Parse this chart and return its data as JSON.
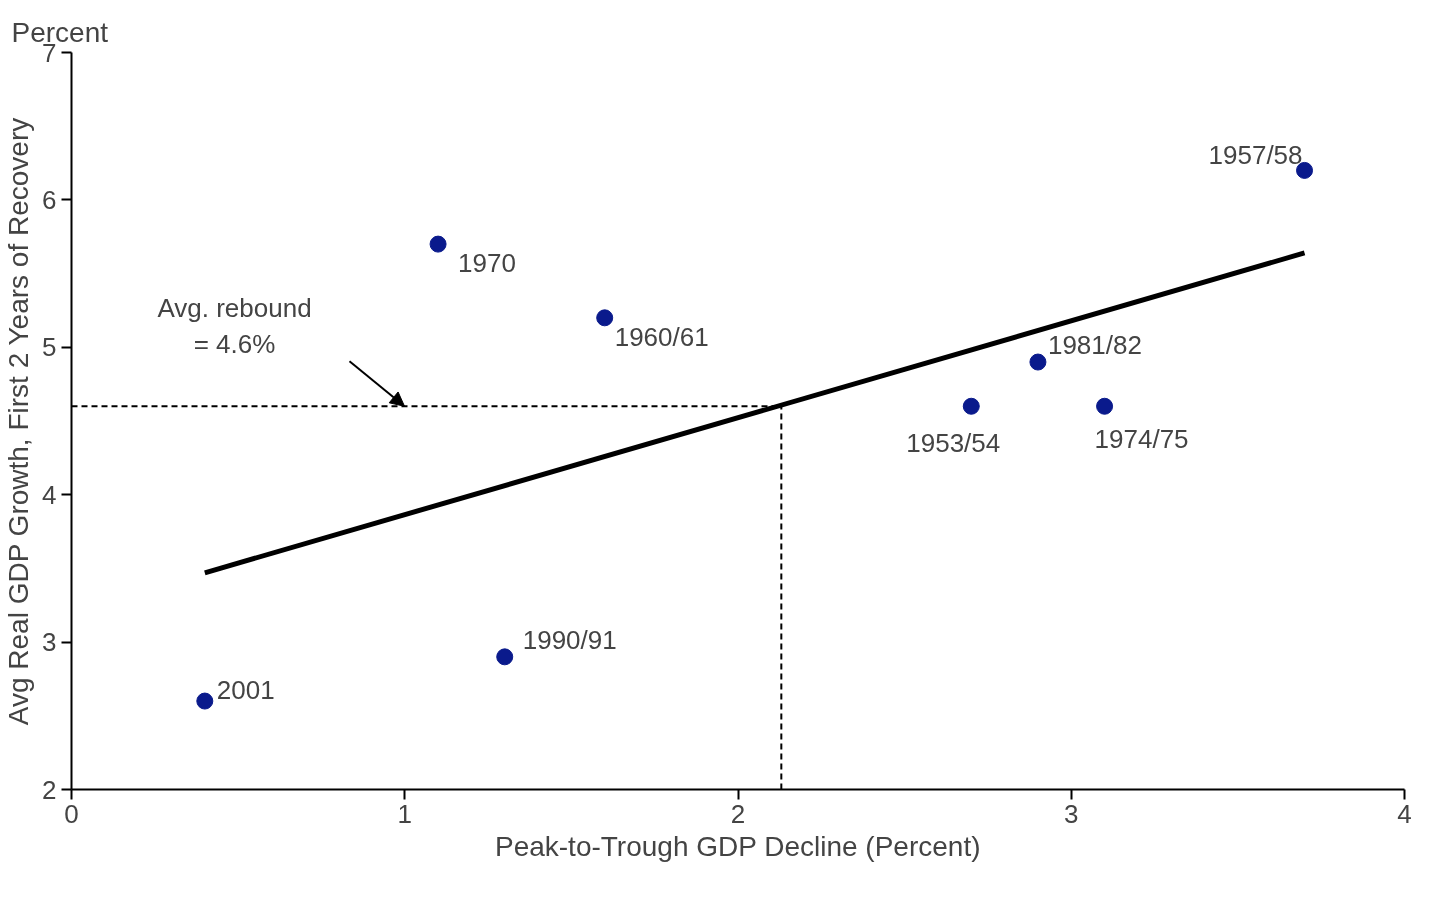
{
  "chart_data": {
    "type": "scatter",
    "subtitle": "Percent",
    "xlabel": "Peak-to-Trough GDP Decline (Percent)",
    "ylabel": "Avg Real GDP Growth, First 2 Years of Recovery",
    "xlim": [
      0,
      4
    ],
    "xticks": [
      0,
      1,
      2,
      3,
      4
    ],
    "ylim": [
      2,
      7
    ],
    "yticks": [
      2,
      3,
      4,
      5,
      6,
      7
    ],
    "grid": false,
    "marker": "circle",
    "series": [
      {
        "color": "#0a1a8c",
        "x": [
          0.4,
          1.3,
          1.1,
          1.6,
          2.7,
          2.9,
          3.1,
          3.7
        ],
        "values": [
          2.6,
          2.9,
          5.7,
          5.2,
          4.6,
          4.9,
          4.6,
          6.2
        ]
      },
      {
        "type": "line",
        "color": "#000000",
        "line_style": "solid",
        "marker": "none",
        "x": [
          0.4,
          3.7
        ],
        "values": [
          3.47,
          5.64
        ]
      }
    ],
    "ref_lines": [
      {
        "axis": "y",
        "value": 4.6,
        "color": "#000000",
        "line_style": "dashed"
      },
      {
        "axis": "x",
        "value": 2.13,
        "color": "#000000",
        "line_style": "dashed"
      }
    ],
    "annotations": [
      {
        "text": "2001",
        "x": 0.4,
        "y": 2.6
      },
      {
        "text": "1990/91",
        "x": 1.3,
        "y": 2.9
      },
      {
        "text": "1970",
        "x": 1.1,
        "y": 5.7
      },
      {
        "text": "1960/61",
        "x": 1.6,
        "y": 5.2
      },
      {
        "text": "1953/54",
        "x": 2.7,
        "y": 4.6
      },
      {
        "text": "1981/82",
        "x": 2.9,
        "y": 4.9
      },
      {
        "text": "1974/75",
        "x": 3.1,
        "y": 4.6
      },
      {
        "text": "1957/58",
        "x": 3.7,
        "y": 6.2
      },
      "Avg. rebound\n= 4.6%"
    ]
  }
}
